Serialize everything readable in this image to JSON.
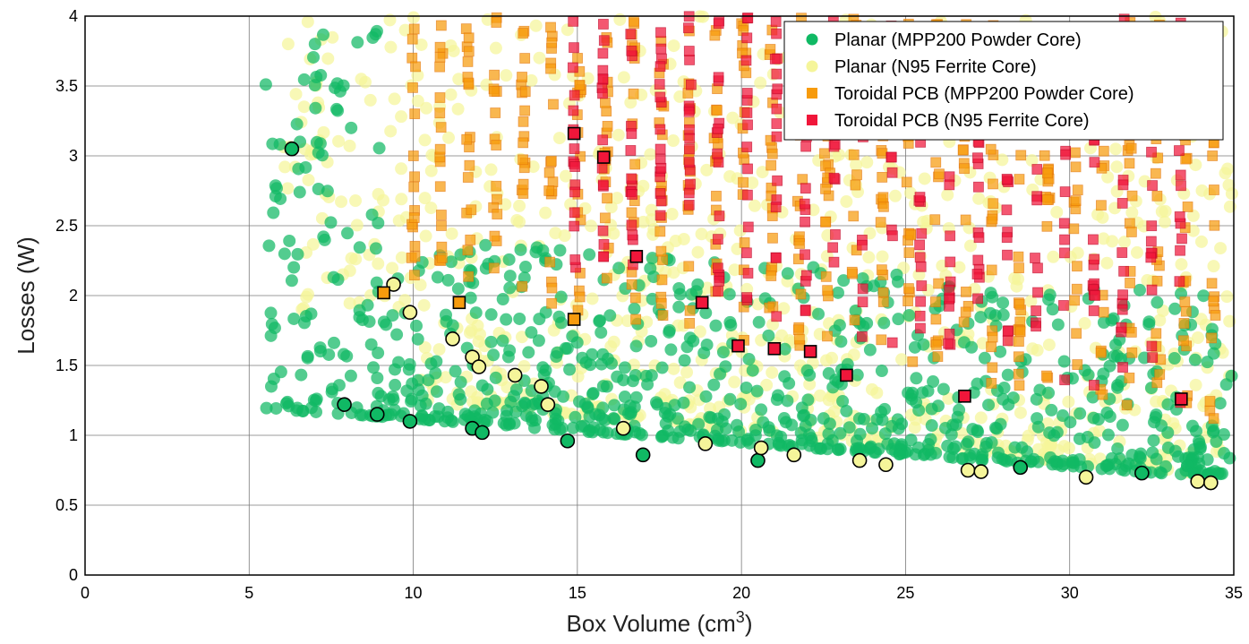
{
  "chart_data": {
    "type": "scatter",
    "title": "",
    "xlabel": "Box Volume (cm",
    "xlabel_sup": "3",
    "xlabel_close": ")",
    "ylabel": "Losses (W)",
    "xlim": [
      0,
      35
    ],
    "ylim": [
      0,
      4
    ],
    "xticks": [
      "0",
      "5",
      "10",
      "15",
      "20",
      "25",
      "30",
      "35"
    ],
    "yticks": [
      "0",
      "0.5",
      "1",
      "1.5",
      "2",
      "2.5",
      "3",
      "3.5",
      "4"
    ],
    "grid": true,
    "legend_position": "top-right",
    "series": [
      {
        "name": "Planar (MPP200 Powder Core)",
        "marker": "circle",
        "color": "#10b964",
        "highlight": [
          [
            6.3,
            3.05
          ],
          [
            7.9,
            1.22
          ],
          [
            8.9,
            1.15
          ],
          [
            9.9,
            1.1
          ],
          [
            11.8,
            1.05
          ],
          [
            12.1,
            1.02
          ],
          [
            14.7,
            0.96
          ],
          [
            17.0,
            0.86
          ],
          [
            20.5,
            0.82
          ],
          [
            28.5,
            0.77
          ],
          [
            32.2,
            0.73
          ]
        ]
      },
      {
        "name": "Planar (N95 Ferrite Core)",
        "marker": "circle",
        "color": "#f5f59a",
        "highlight": [
          [
            9.4,
            2.08
          ],
          [
            9.9,
            1.88
          ],
          [
            11.2,
            1.69
          ],
          [
            11.8,
            1.56
          ],
          [
            12.0,
            1.49
          ],
          [
            13.1,
            1.43
          ],
          [
            13.9,
            1.35
          ],
          [
            14.1,
            1.22
          ],
          [
            16.4,
            1.05
          ],
          [
            18.9,
            0.94
          ],
          [
            20.6,
            0.91
          ],
          [
            21.6,
            0.86
          ],
          [
            23.6,
            0.82
          ],
          [
            24.4,
            0.79
          ],
          [
            26.9,
            0.75
          ],
          [
            27.3,
            0.74
          ],
          [
            30.5,
            0.7
          ],
          [
            33.9,
            0.67
          ],
          [
            34.3,
            0.66
          ]
        ]
      },
      {
        "name": "Toroidal PCB (MPP200 Powder Core)",
        "marker": "square",
        "color": "#f79b0d",
        "highlight": [
          [
            9.1,
            2.02
          ],
          [
            11.4,
            1.95
          ],
          [
            14.9,
            1.83
          ]
        ]
      },
      {
        "name": "Toroidal PCB (N95 Ferrite Core)",
        "marker": "square",
        "color": "#f0163a",
        "highlight": [
          [
            14.9,
            3.16
          ],
          [
            15.8,
            2.99
          ],
          [
            16.8,
            2.28
          ],
          [
            18.8,
            1.95
          ],
          [
            19.9,
            1.64
          ],
          [
            21.0,
            1.62
          ],
          [
            22.1,
            1.6
          ],
          [
            23.2,
            1.43
          ],
          [
            26.8,
            1.28
          ],
          [
            33.4,
            1.26
          ]
        ]
      }
    ]
  }
}
